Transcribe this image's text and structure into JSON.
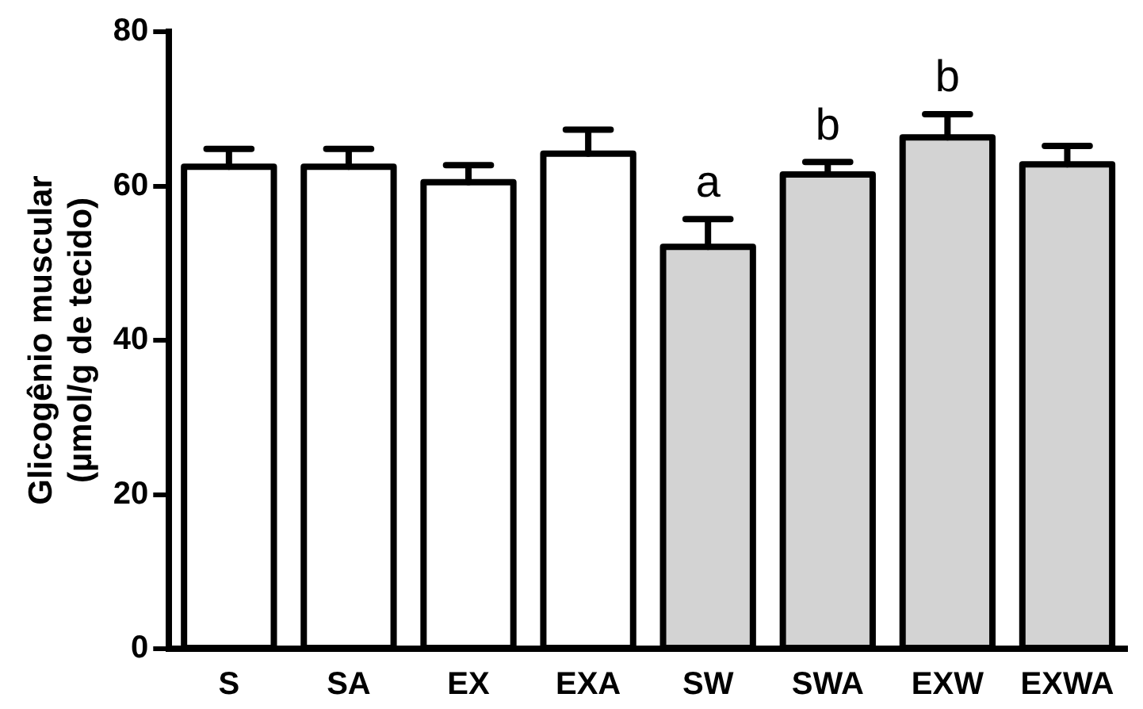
{
  "chart_data": {
    "type": "bar",
    "ylabel": "Glicogênio muscular\n(µmol/g de tecido)",
    "categories": [
      "S",
      "SA",
      "EX",
      "EXA",
      "SW",
      "SWA",
      "EXW",
      "EXWA"
    ],
    "values": [
      62.5,
      62.5,
      60.5,
      64.2,
      52.1,
      61.5,
      66.3,
      62.8
    ],
    "errors": [
      2.3,
      2.3,
      2.2,
      3.1,
      3.6,
      1.6,
      3.0,
      2.4
    ],
    "colors": [
      "#ffffff",
      "#ffffff",
      "#ffffff",
      "#ffffff",
      "#d3d3d3",
      "#d3d3d3",
      "#d3d3d3",
      "#d3d3d3"
    ],
    "ylim": [
      0,
      80
    ],
    "yticks": [
      0,
      20,
      40,
      60,
      80
    ],
    "grid": false,
    "legend": false,
    "annotations": [
      {
        "text": "a",
        "x": "SW",
        "y": 52.1
      },
      {
        "text": "b",
        "x": "SWA",
        "y": 61.5
      },
      {
        "text": "b",
        "x": "EXW",
        "y": 66.3
      }
    ]
  }
}
